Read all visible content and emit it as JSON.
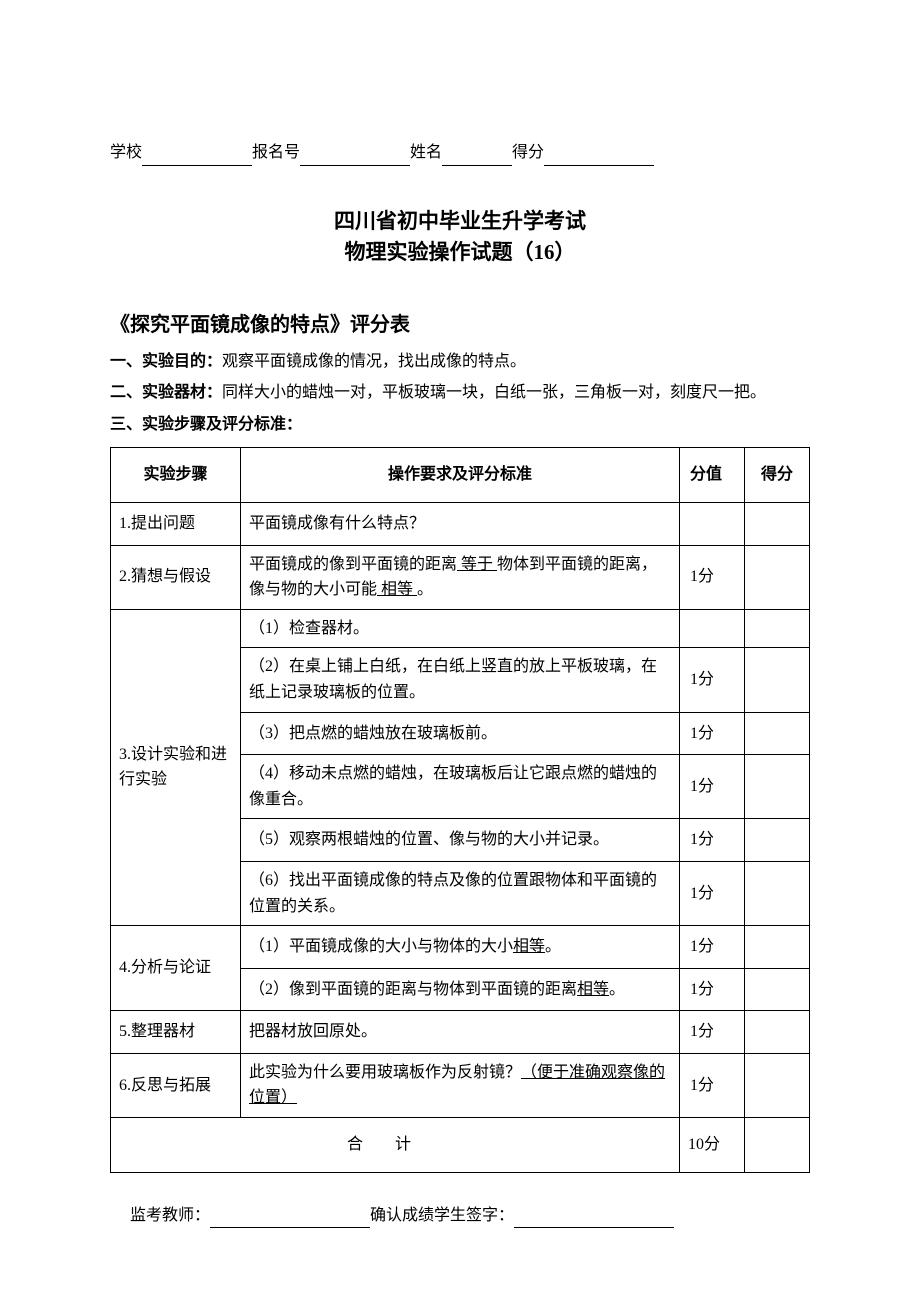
{
  "header": {
    "school_label": "学校",
    "reg_label": "报名号",
    "name_label": "姓名",
    "score_label": "得分"
  },
  "title": {
    "line1": "四川省初中毕业生升学考试",
    "line2": "物理实验操作试题（16）"
  },
  "subtitle": "《探究平面镜成像的特点》评分表",
  "sections": {
    "purpose_label": "一、实验目的：",
    "purpose_text": "观察平面镜成像的情况，找出成像的特点。",
    "equipment_label": "二、实验器材：",
    "equipment_text": "同样大小的蜡烛一对，平板玻璃一块，白纸一张，三角板一对，刻度尺一把。",
    "steps_label": "三、实验步骤及评分标准："
  },
  "table": {
    "headers": {
      "step": "实验步骤",
      "criteria": "操作要求及评分标准",
      "score": "分值",
      "got": "得分"
    },
    "rows": {
      "r1": {
        "step": "1.提出问题",
        "criteria": "平面镜成像有什么特点？",
        "score": ""
      },
      "r2": {
        "step": "2.猜想与假设",
        "criteria_pre": "平面镜成的像到平面镜的距离",
        "u1": " 等于 ",
        "mid": "物体到平面镜的距离，像与物的大小可能",
        "u2": " 相等 ",
        "suffix": "。",
        "score": "1分"
      },
      "r3": {
        "step": "3.设计实验和进行实验",
        "c1": "（1）检查器材。",
        "s1": "",
        "c2": "（2）在桌上铺上白纸，在白纸上竖直的放上平板玻璃，在纸上记录玻璃板的位置。",
        "s2": "1分",
        "c3": "（3）把点燃的蜡烛放在玻璃板前。",
        "s3": "1分",
        "c4": "（4）移动未点燃的蜡烛，在玻璃板后让它跟点燃的蜡烛的像重合。",
        "s4": "1分",
        "c5": "（5）观察两根蜡烛的位置、像与物的大小并记录。",
        "s5": "1分",
        "c6": "（6）找出平面镜成像的特点及像的位置跟物体和平面镜的位置的关系。",
        "s6": "1分"
      },
      "r4": {
        "step": "4.分析与论证",
        "c1_pre": "（1）平面镜成像的大小与物体的大小",
        "c1_u": "相等",
        "c1_suf": "。",
        "s1": "1分",
        "c2_pre": "（2）像到平面镜的距离与物体到平面镜的距离",
        "c2_u": "相等",
        "c2_suf": "。",
        "s2": "1分"
      },
      "r5": {
        "step": "5.整理器材",
        "criteria": "把器材放回原处。",
        "score": "1分"
      },
      "r6": {
        "step": "6.反思与拓展",
        "pre": "此实验为什么要用玻璃板作为反射镜？",
        "u": "（便于准确观察像的位置）",
        "score": "1分"
      },
      "total": {
        "label": "合计",
        "score": "10分"
      }
    }
  },
  "footer": {
    "examiner": "监考教师：",
    "confirm": "确认成绩学生签字："
  }
}
